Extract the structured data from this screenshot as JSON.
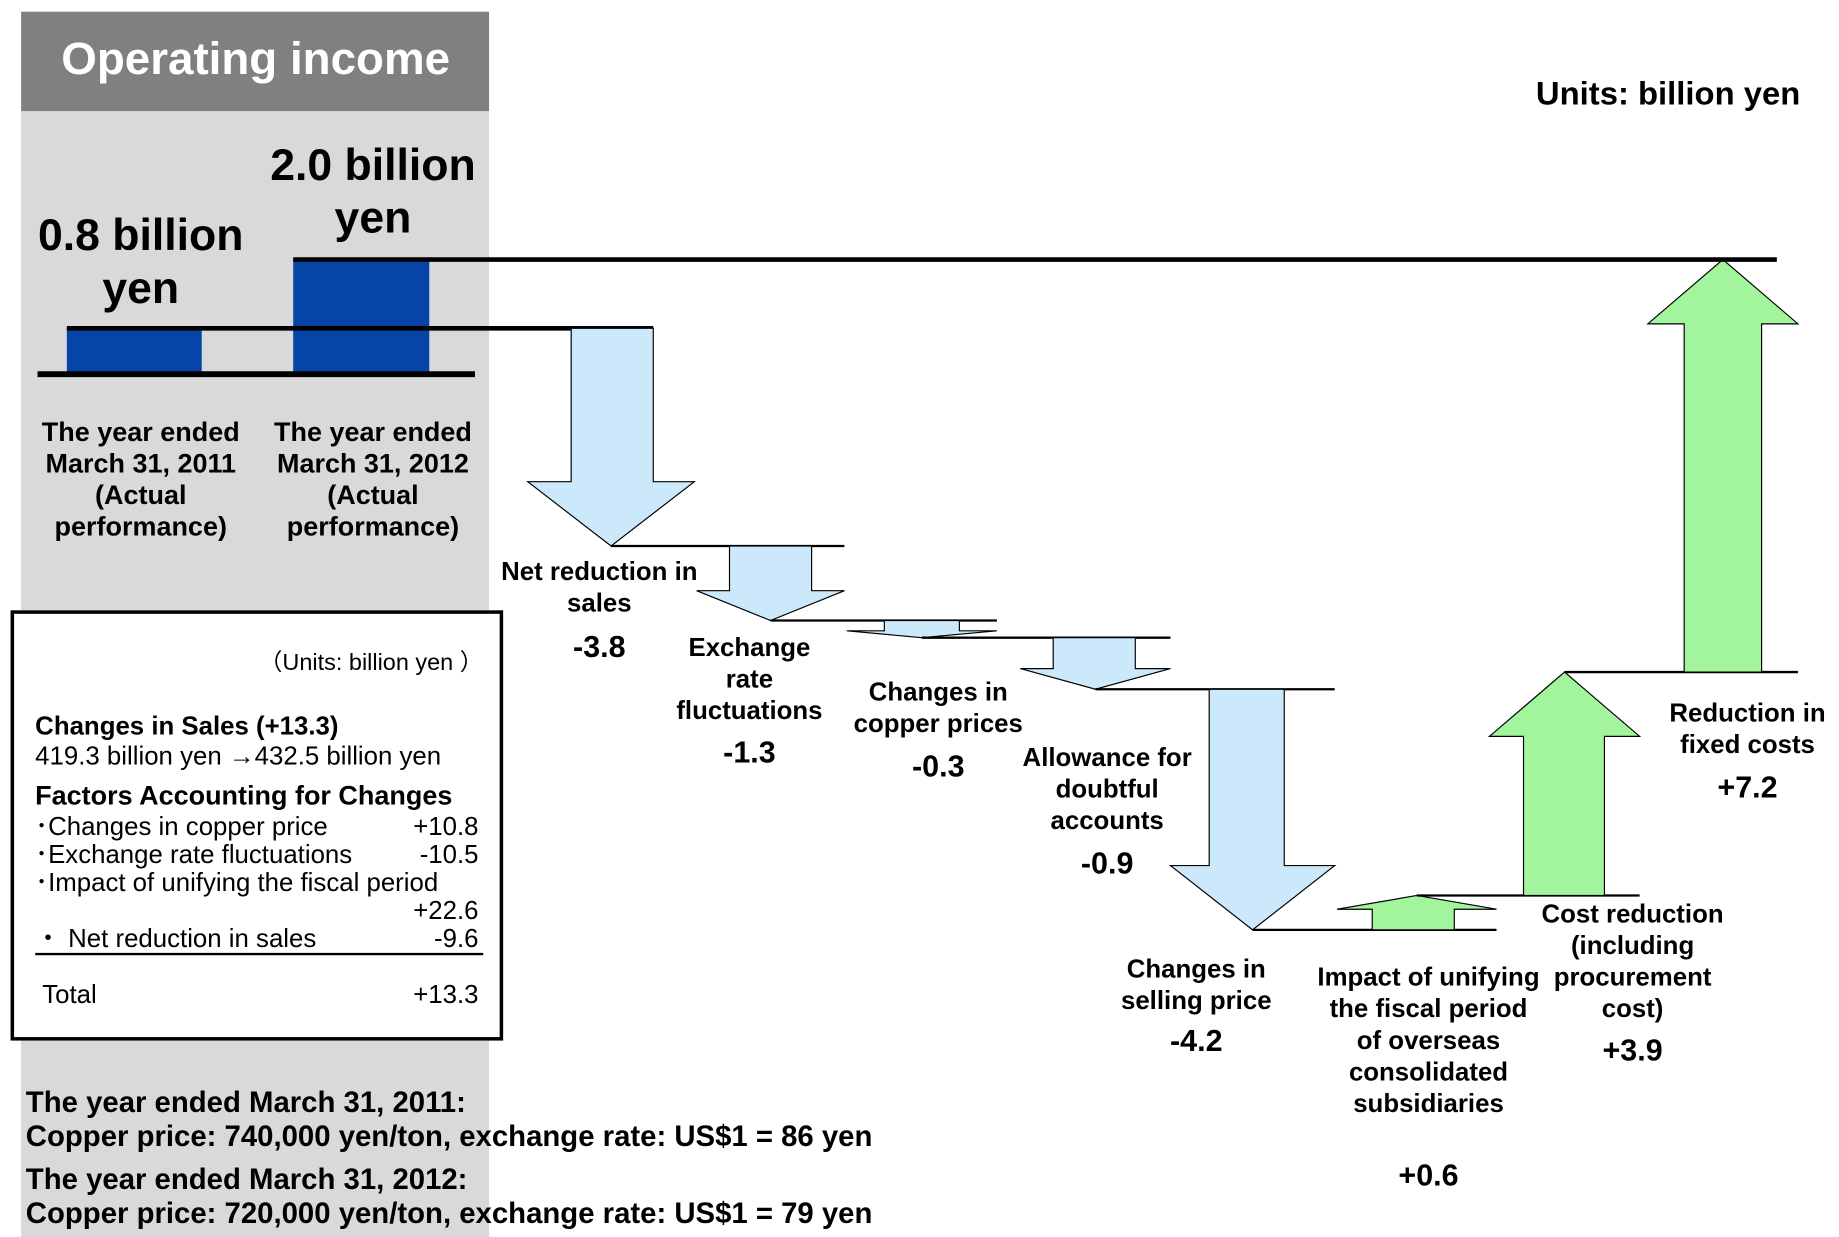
{
  "chart_data": {
    "type": "waterfall",
    "title": "Operating income",
    "units": "Units: billion yen",
    "categories": [
      "The year ended March 31, 2011 (Actual performance)",
      "The year ended March 31, 2012 (Actual performance)"
    ],
    "values": [
      0.8,
      2.0
    ],
    "value_labels": [
      "0.8 billion yen",
      "2.0 billion yen"
    ],
    "color": "#0645a8",
    "steps": {
      "categories": [
        "Net reduction in sales",
        "Exchange rate fluctuations",
        "Changes in copper prices",
        "Allowance for doubtful accounts",
        "Changes in selling price",
        "Impact of unifying the fiscal period of overseas consolidated subsidiaries",
        "Cost reduction (including procurement cost)",
        "Reduction in fixed costs"
      ],
      "values": [
        -3.8,
        -1.3,
        -0.3,
        -0.9,
        -4.2,
        0.6,
        3.9,
        7.2
      ],
      "value_labels": [
        "-3.8",
        "-1.3",
        "-0.3",
        "-0.9",
        "-4.2",
        "+0.6",
        "+3.9",
        "+7.2"
      ],
      "decrease_color": "#cce9fb",
      "increase_color": "#a3f59d"
    }
  },
  "sales_box": {
    "units": "（Units: billion yen ）",
    "heading": "Changes in Sales (+13.3)",
    "change": "419.3 billion yen →432.5 billion yen",
    "factors_title": "Factors Accounting for Changes",
    "items": [
      [
        "･Changes in copper price",
        "+10.8"
      ],
      [
        "･Exchange rate fluctuations",
        "-10.5"
      ],
      [
        "･Impact of unifying the fiscal period",
        "+22.6"
      ],
      [
        "・ Net reduction in sales",
        "-9.6"
      ]
    ],
    "total": [
      "Total",
      "+13.3"
    ]
  },
  "notes": [
    "The year ended March 31, 2011:",
    "Copper price: 740,000 yen/ton, exchange rate: US$1 = 86 yen",
    "The year ended March 31, 2012:",
    "Copper price: 720,000 yen/ton, exchange rate: US$1 = 79 yen"
  ]
}
